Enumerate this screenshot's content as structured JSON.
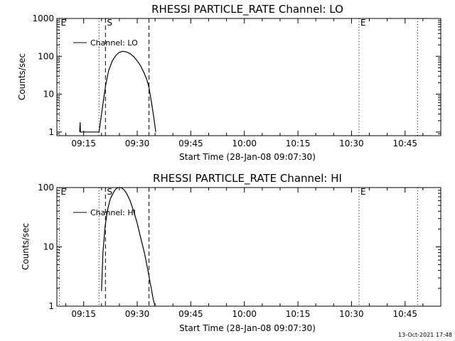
{
  "footer_timestamp": "13-Oct-2021 17:48",
  "chart_data": [
    {
      "type": "line",
      "title": "RHESSI PARTICLE_RATE Channel: LO",
      "xlabel": "Start Time (28-Jan-08 09:07:30)",
      "ylabel": "Counts/sec",
      "x_ticks": [
        "09:15",
        "09:30",
        "09:45",
        "10:00",
        "10:15",
        "10:30",
        "10:45"
      ],
      "x_tick_minutes": [
        555,
        570,
        585,
        600,
        615,
        630,
        645
      ],
      "xlim_minutes": [
        547.5,
        655
      ],
      "yscale": "log",
      "ylim": [
        0.8,
        1000
      ],
      "y_ticks": [
        "1",
        "10",
        "100",
        "1000"
      ],
      "y_tick_values": [
        1,
        10,
        100,
        1000
      ],
      "legend": {
        "label": "Channel: LO",
        "position": "top-left"
      },
      "markers": [
        {
          "label": "E",
          "x": 548.2,
          "style": "dotted"
        },
        {
          "label": "",
          "x": 559.3,
          "style": "dotted"
        },
        {
          "label": "S",
          "x": 561.1,
          "style": "dashed"
        },
        {
          "label": "",
          "x": 573.3,
          "style": "dashed"
        },
        {
          "label": "E",
          "x": 632.1,
          "style": "dotted"
        },
        {
          "label": "",
          "x": 648.5,
          "style": "dotted"
        }
      ],
      "series": [
        {
          "name": "Channel: LO",
          "x": [
            553.9,
            554.0,
            554.1,
            559.3,
            559.9,
            560.5,
            561.2,
            562.0,
            563.0,
            564.0,
            565.0,
            566.0,
            567.0,
            568.0,
            569.0,
            570.0,
            571.0,
            572.0,
            572.7,
            573.3,
            574.0,
            574.5,
            575.2
          ],
          "y": [
            1.0,
            1.8,
            1.0,
            1.0,
            2.5,
            6.5,
            18.0,
            42.0,
            75.0,
            105.0,
            128.0,
            135.0,
            130.0,
            118.0,
            98.0,
            76.0,
            55.0,
            35.0,
            24.0,
            15.0,
            6.0,
            3.0,
            1.0
          ]
        }
      ]
    },
    {
      "type": "line",
      "title": "RHESSI PARTICLE_RATE Channel: HI",
      "xlabel": "Start Time (28-Jan-08 09:07:30)",
      "ylabel": "Counts/sec",
      "x_ticks": [
        "09:15",
        "09:30",
        "09:45",
        "10:00",
        "10:15",
        "10:30",
        "10:45"
      ],
      "x_tick_minutes": [
        555,
        570,
        585,
        600,
        615,
        630,
        645
      ],
      "xlim_minutes": [
        547.5,
        655
      ],
      "yscale": "log",
      "ylim": [
        1,
        100
      ],
      "y_ticks": [
        "1",
        "10",
        "100"
      ],
      "y_tick_values": [
        1,
        10,
        100
      ],
      "legend": {
        "label": "Channel: HI",
        "position": "top-left"
      },
      "markers": [
        {
          "label": "E",
          "x": 548.2,
          "style": "dotted"
        },
        {
          "label": "",
          "x": 559.3,
          "style": "dotted"
        },
        {
          "label": "S",
          "x": 561.1,
          "style": "dashed"
        },
        {
          "label": "",
          "x": 573.3,
          "style": "dashed"
        },
        {
          "label": "E",
          "x": 632.1,
          "style": "dotted"
        },
        {
          "label": "",
          "x": 648.5,
          "style": "dotted"
        }
      ],
      "series": [
        {
          "name": "Channel: HI",
          "x": [
            560.0,
            560.4,
            561.0,
            561.8,
            562.5,
            563.3,
            564.0,
            564.7,
            565.5,
            566.3,
            567.0,
            568.0,
            569.0,
            570.0,
            571.0,
            572.0,
            573.0,
            573.8,
            574.5,
            575.0
          ],
          "y": [
            1.8,
            8.0,
            22.0,
            45.0,
            65.0,
            82.0,
            95.0,
            100.0,
            100.0,
            92.0,
            80.0,
            60.0,
            40.0,
            25.0,
            14.0,
            8.0,
            4.0,
            2.2,
            1.3,
            1.0
          ]
        }
      ]
    }
  ]
}
